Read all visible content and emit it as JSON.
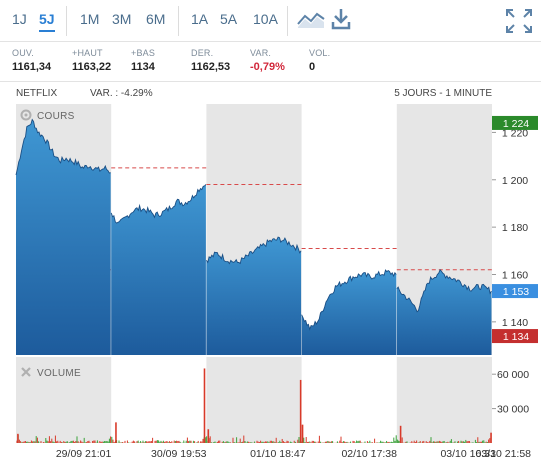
{
  "toolbar": {
    "periods": [
      "1J",
      "5J",
      "1M",
      "3M",
      "6M",
      "1A",
      "5A",
      "10A"
    ],
    "active_period": "5J",
    "icons": [
      "line-chart-icon",
      "download-icon",
      "fullscreen-icon"
    ]
  },
  "quotes": [
    {
      "label": "OUV.",
      "value": "1161,34",
      "negative": false
    },
    {
      "label": "+HAUT",
      "value": "1163,22",
      "negative": false
    },
    {
      "label": "+BAS",
      "value": "1134",
      "negative": false
    },
    {
      "label": "DER.",
      "value": "1162,53",
      "negative": false
    },
    {
      "label": "VAR.",
      "value": "-0,79%",
      "negative": true
    },
    {
      "label": "VOL.",
      "value": "0",
      "negative": false
    }
  ],
  "chart_header": {
    "name": "NETFLIX",
    "variation": "VAR. : -4.29%",
    "range": "5 JOURS - 1 MINUTE"
  },
  "colors": {
    "price_top": "#3f97d3",
    "price_bottom": "#1d5b9c",
    "high_badge": "#2b8a2b",
    "last_badge": "#3a8fe0",
    "low_badge": "#c42f2f",
    "volume_red": "#d83a2a",
    "volume_green": "#3aa23a",
    "prev_close_line": "#d84a4a",
    "session_shade": "#e6e6e6"
  },
  "chart_data": [
    {
      "type": "area",
      "title": "COURS",
      "ylim": [
        1126,
        1232
      ],
      "yticks": [
        1140,
        1160,
        1180,
        1200,
        1220
      ],
      "ytick_labels": [
        "1 140",
        "1 160",
        "1 180",
        "1 200",
        "1 220"
      ],
      "badges": [
        {
          "label": "1 224",
          "value": 1224,
          "kind": "high"
        },
        {
          "label": "1 153",
          "value": 1153,
          "kind": "last"
        },
        {
          "label": "1 134",
          "value": 1134,
          "kind": "low"
        }
      ],
      "prev_close_lines": [
        {
          "from": 0,
          "to": 1,
          "value": 1162
        },
        {
          "from": 1,
          "to": 2,
          "value": 1205
        },
        {
          "from": 2,
          "to": 3,
          "value": 1198
        },
        {
          "from": 3,
          "to": 4,
          "value": 1171
        },
        {
          "from": 4,
          "to": 5,
          "value": 1162
        }
      ],
      "days": [
        [
          1202,
          1213,
          1222,
          1225,
          1220,
          1218,
          1214,
          1210,
          1208,
          1209,
          1208,
          1207,
          1205,
          1206,
          1205,
          1204,
          1205,
          1203
        ],
        [
          1186,
          1181,
          1184,
          1187,
          1188,
          1187,
          1185,
          1186,
          1188,
          1191,
          1190,
          1192,
          1196,
          1198
        ],
        [
          1166,
          1169,
          1166,
          1165,
          1168,
          1171,
          1174,
          1175,
          1173,
          1170
        ],
        [
          1143,
          1137,
          1141,
          1150,
          1155,
          1157,
          1159,
          1160,
          1159,
          1160,
          1161,
          1160
        ],
        [
          1154,
          1150,
          1145,
          1157,
          1161,
          1159,
          1157,
          1154,
          1155,
          1153
        ]
      ],
      "xtick_labels": [
        "29/09 21:01",
        "30/09 19:53",
        "01/10 18:47",
        "02/10 17:38",
        "03/10 16:33",
        "03/10 21:58"
      ],
      "xtick_positions": [
        0.71,
        1.71,
        2.75,
        3.71,
        4.75,
        5.0
      ]
    },
    {
      "type": "bar",
      "title": "VOLUME",
      "ylim": [
        0,
        75000
      ],
      "yticks": [
        30000,
        60000
      ],
      "ytick_labels": [
        "30 000",
        "60 000"
      ],
      "spikes": [
        {
          "x": 1.98,
          "value": 65000
        },
        {
          "x": 2.99,
          "value": 55000
        },
        {
          "x": 1.05,
          "value": 18000
        },
        {
          "x": 2.02,
          "value": 12000
        },
        {
          "x": 3.01,
          "value": 16000
        },
        {
          "x": 4.04,
          "value": 15000
        },
        {
          "x": 4.99,
          "value": 9000
        },
        {
          "x": 0.02,
          "value": 8000
        }
      ]
    }
  ]
}
